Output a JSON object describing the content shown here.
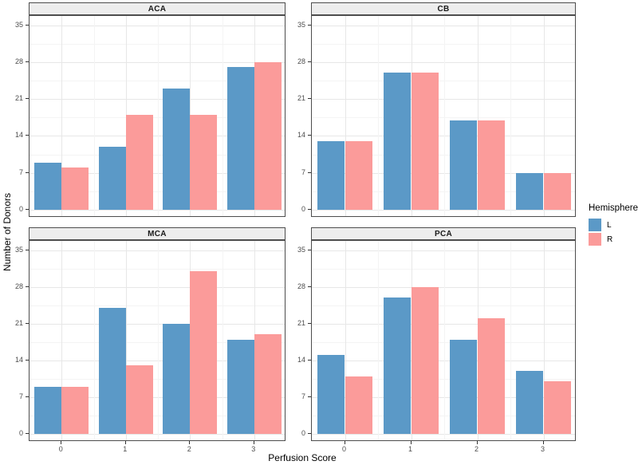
{
  "chart_data": {
    "type": "bar",
    "layout_note": "2x2 faceted grouped bar chart (dodged), white background with light gray grid, gray facet strips",
    "xlabel": "Perfusion Score",
    "ylabel": "Number of Donors",
    "categories": [
      "0",
      "1",
      "2",
      "3"
    ],
    "y_ticks": [
      0,
      7,
      14,
      21,
      28,
      35
    ],
    "ylim": [
      0,
      37
    ],
    "grid": "major and minor, both axes",
    "legend": {
      "title": "Hemisphere",
      "position": "right"
    },
    "series_names": [
      "L",
      "R"
    ],
    "facets": [
      {
        "label": "ACA",
        "series": [
          {
            "name": "L",
            "values": [
              9,
              12,
              23,
              27
            ]
          },
          {
            "name": "R",
            "values": [
              8,
              18,
              18,
              28
            ]
          }
        ]
      },
      {
        "label": "CB",
        "series": [
          {
            "name": "L",
            "values": [
              13,
              26,
              17,
              7
            ]
          },
          {
            "name": "R",
            "values": [
              13,
              26,
              17,
              7
            ]
          }
        ]
      },
      {
        "label": "MCA",
        "series": [
          {
            "name": "L",
            "values": [
              9,
              24,
              21,
              18
            ]
          },
          {
            "name": "R",
            "values": [
              9,
              13,
              31,
              19
            ]
          }
        ]
      },
      {
        "label": "PCA",
        "series": [
          {
            "name": "L",
            "values": [
              15,
              26,
              18,
              12
            ]
          },
          {
            "name": "R",
            "values": [
              11,
              28,
              22,
              10
            ]
          }
        ]
      }
    ]
  },
  "style": {
    "series_colors": {
      "L": "#5B99C7",
      "R": "#FB9B9A"
    },
    "grid_major": "#E7E7E7",
    "grid_minor": "#F4F4F4",
    "panel_border": "#4D4D4D",
    "strip_fill": "#EDEDED",
    "tick_color": "#333333",
    "tick_label_color": "#4D4D4D"
  }
}
